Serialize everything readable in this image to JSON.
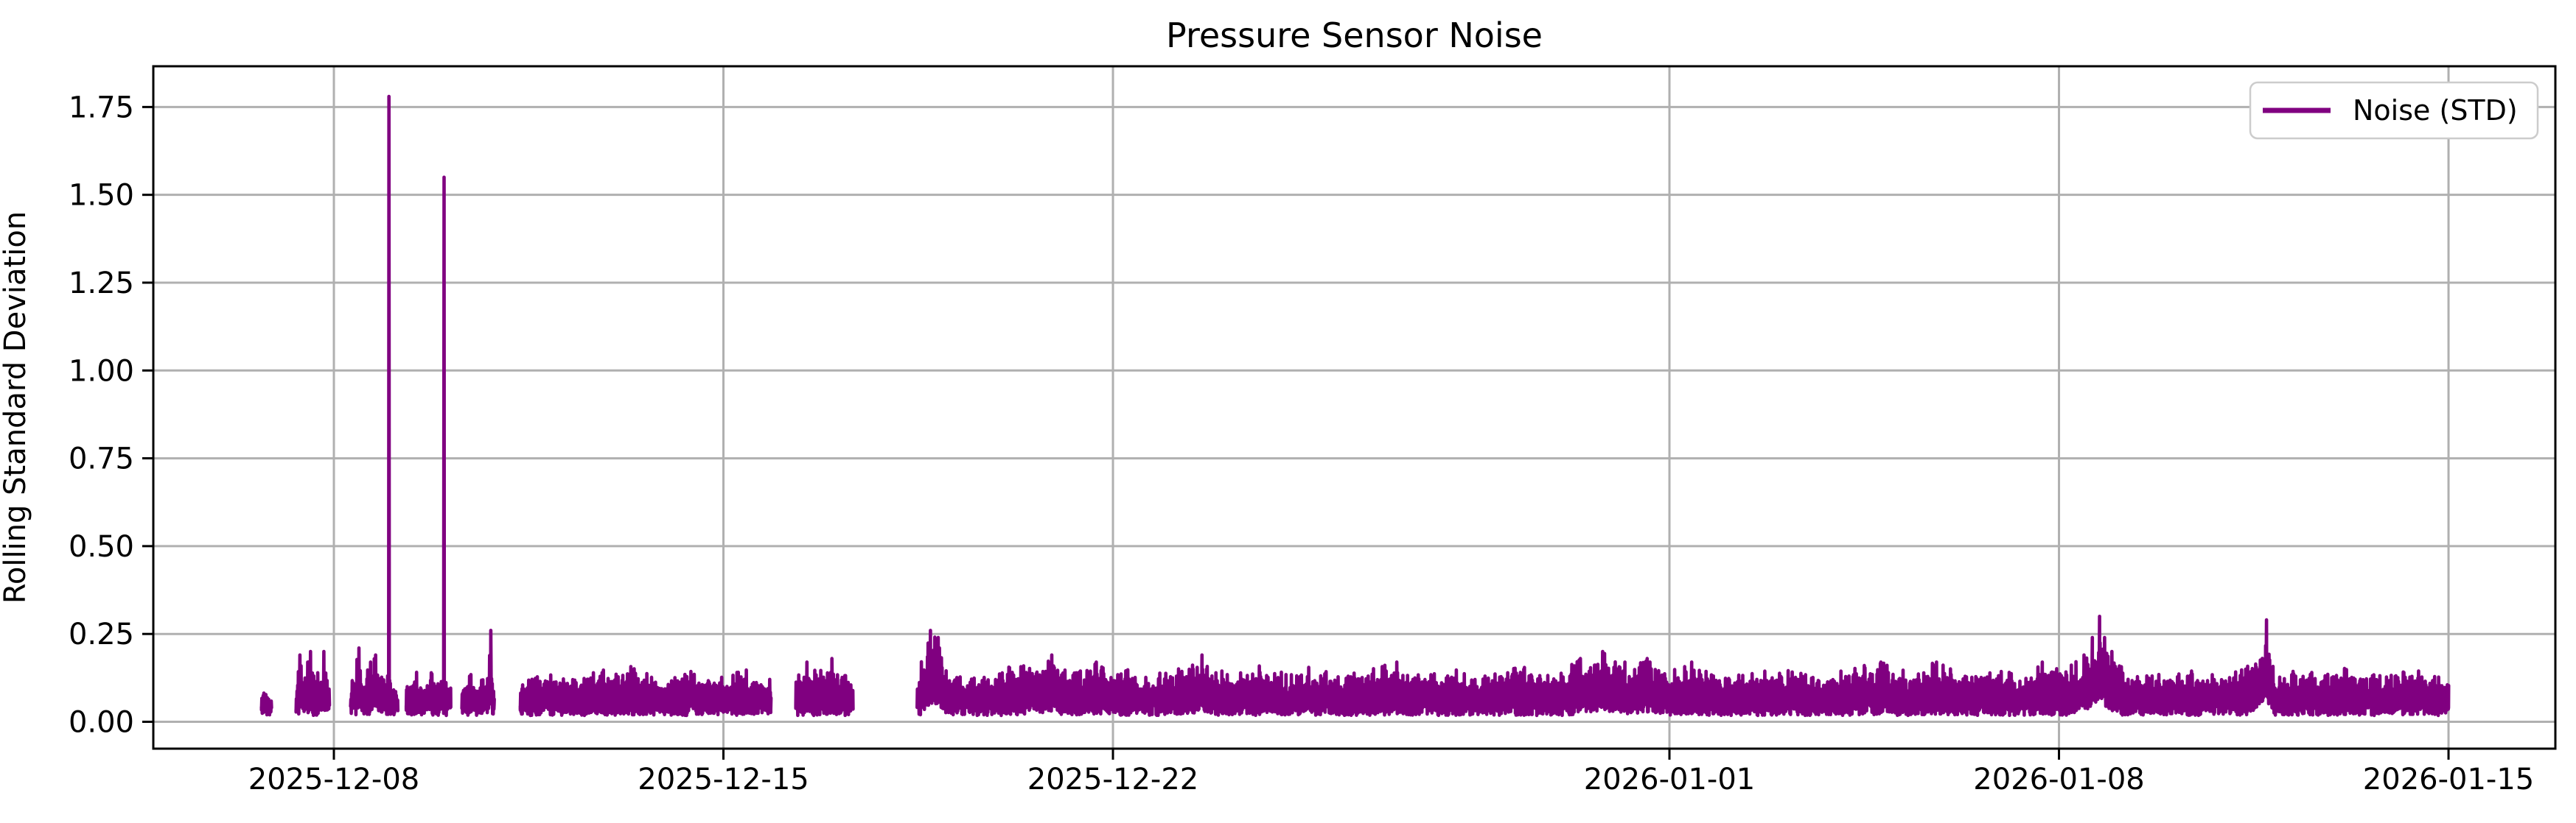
{
  "figure": {
    "background": "#ffffff"
  },
  "chart_data": {
    "type": "line",
    "title": "Pressure Sensor Noise",
    "xlabel": "",
    "ylabel": "Rolling Standard Deviation",
    "grid": "on",
    "legend": [
      {
        "label": "Noise (STD)",
        "color": "#800080"
      }
    ],
    "legend_position": "upper right",
    "colors": {
      "line": "#800080",
      "grid": "#b0b0b0",
      "spine": "#000000",
      "legend_border": "#cccccc"
    },
    "x_axis": {
      "tick_unit": "date",
      "ticks": [
        {
          "label": "2025-12-08",
          "day": 0
        },
        {
          "label": "2025-12-15",
          "day": 7
        },
        {
          "label": "2025-12-22",
          "day": 14
        },
        {
          "label": "2026-01-01",
          "day": 24
        },
        {
          "label": "2026-01-08",
          "day": 31
        },
        {
          "label": "2026-01-15",
          "day": 38
        }
      ],
      "domain_days": [
        -3.245,
        39.92
      ]
    },
    "y_axis": {
      "ticks": [
        {
          "label": "0.00",
          "value": 0.0
        },
        {
          "label": "0.25",
          "value": 0.25
        },
        {
          "label": "0.50",
          "value": 0.5
        },
        {
          "label": "0.75",
          "value": 0.75
        },
        {
          "label": "1.00",
          "value": 1.0
        },
        {
          "label": "1.25",
          "value": 1.25
        },
        {
          "label": "1.50",
          "value": 1.5
        },
        {
          "label": "1.75",
          "value": 1.75
        }
      ],
      "domain": [
        -0.0765,
        1.866
      ]
    },
    "series": {
      "name": "Noise (STD)",
      "color": "#800080",
      "baseline_range": [
        0.02,
        0.12
      ],
      "big_spikes": [
        {
          "day": 0.99,
          "value": 1.78,
          "date": "2025-12-09"
        },
        {
          "day": 1.98,
          "value": 1.55,
          "date": "2025-12-10"
        }
      ],
      "segments": [
        {
          "t_range": [
            -1.3,
            -1.12
          ],
          "envelope": [
            [
              -1.3,
              0.07
            ],
            [
              -1.24,
              0.1
            ],
            [
              -1.18,
              0.08
            ],
            [
              -1.12,
              0.06
            ]
          ]
        },
        {
          "t_range": [
            -0.68,
            -0.08
          ],
          "envelope": [
            [
              -0.68,
              0.1
            ],
            [
              -0.61,
              0.19
            ],
            [
              -0.55,
              0.13
            ],
            [
              -0.47,
              0.17
            ],
            [
              -0.42,
              0.2
            ],
            [
              -0.33,
              0.13
            ],
            [
              -0.27,
              0.16
            ],
            [
              -0.18,
              0.2
            ],
            [
              -0.12,
              0.13
            ],
            [
              -0.08,
              0.09
            ]
          ]
        },
        {
          "t_range": [
            0.3,
            1.15
          ],
          "envelope": [
            [
              0.3,
              0.1
            ],
            [
              0.38,
              0.15
            ],
            [
              0.45,
              0.21
            ],
            [
              0.55,
              0.13
            ],
            [
              0.66,
              0.17
            ],
            [
              0.75,
              0.19
            ],
            [
              0.85,
              0.13
            ],
            [
              0.95,
              0.16
            ],
            [
              1.05,
              0.12
            ],
            [
              1.15,
              0.09
            ]
          ]
        },
        {
          "t_range": [
            1.3,
            2.1
          ],
          "envelope": [
            [
              1.3,
              0.1
            ],
            [
              1.45,
              0.15
            ],
            [
              1.6,
              0.12
            ],
            [
              1.75,
              0.14
            ],
            [
              1.9,
              0.12
            ],
            [
              2.05,
              0.13
            ]
          ]
        },
        {
          "t_range": [
            2.3,
            2.88
          ],
          "envelope": [
            [
              2.3,
              0.11
            ],
            [
              2.45,
              0.14
            ],
            [
              2.6,
              0.12
            ],
            [
              2.75,
              0.13
            ],
            [
              2.82,
              0.26
            ],
            [
              2.88,
              0.09
            ]
          ]
        },
        {
          "t_range": [
            3.35,
            7.85
          ],
          "envelope": [
            [
              3.35,
              0.11
            ],
            [
              3.8,
              0.14
            ],
            [
              4.3,
              0.12
            ],
            [
              4.8,
              0.15
            ],
            [
              5.4,
              0.16
            ],
            [
              5.9,
              0.12
            ],
            [
              6.4,
              0.15
            ],
            [
              6.9,
              0.13
            ],
            [
              7.4,
              0.15
            ],
            [
              7.85,
              0.12
            ]
          ]
        },
        {
          "t_range": [
            8.3,
            9.33
          ],
          "envelope": [
            [
              8.3,
              0.12
            ],
            [
              8.5,
              0.17
            ],
            [
              8.7,
              0.14
            ],
            [
              8.95,
              0.18
            ],
            [
              9.15,
              0.14
            ],
            [
              9.33,
              0.11
            ]
          ]
        },
        {
          "t_range": [
            10.48,
            38.0
          ],
          "envelope": [
            [
              10.48,
              0.13
            ],
            [
              10.72,
              0.26
            ],
            [
              10.86,
              0.24
            ],
            [
              11.05,
              0.15
            ],
            [
              11.6,
              0.13
            ],
            [
              12.2,
              0.16
            ],
            [
              12.9,
              0.19
            ],
            [
              13.3,
              0.14
            ],
            [
              13.7,
              0.17
            ],
            [
              14.1,
              0.16
            ],
            [
              14.6,
              0.13
            ],
            [
              15.1,
              0.15
            ],
            [
              15.6,
              0.19
            ],
            [
              16.1,
              0.13
            ],
            [
              16.6,
              0.16
            ],
            [
              17.1,
              0.14
            ],
            [
              17.6,
              0.16
            ],
            [
              18.1,
              0.13
            ],
            [
              18.6,
              0.15
            ],
            [
              19.1,
              0.17
            ],
            [
              19.6,
              0.13
            ],
            [
              20.1,
              0.15
            ],
            [
              20.7,
              0.13
            ],
            [
              21.3,
              0.16
            ],
            [
              21.9,
              0.13
            ],
            [
              22.4,
              0.18
            ],
            [
              22.8,
              0.2
            ],
            [
              23.2,
              0.17
            ],
            [
              23.6,
              0.18
            ],
            [
              24.0,
              0.15
            ],
            [
              24.4,
              0.17
            ],
            [
              24.9,
              0.13
            ],
            [
              25.4,
              0.14
            ],
            [
              26.0,
              0.15
            ],
            [
              26.6,
              0.13
            ],
            [
              27.2,
              0.15
            ],
            [
              27.8,
              0.17
            ],
            [
              28.3,
              0.15
            ],
            [
              28.8,
              0.17
            ],
            [
              29.3,
              0.15
            ],
            [
              29.8,
              0.16
            ],
            [
              30.3,
              0.13
            ],
            [
              30.7,
              0.17
            ],
            [
              31.1,
              0.15
            ],
            [
              31.45,
              0.19
            ],
            [
              31.6,
              0.24
            ],
            [
              31.73,
              0.3
            ],
            [
              31.82,
              0.24
            ],
            [
              31.95,
              0.2
            ],
            [
              32.15,
              0.16
            ],
            [
              32.5,
              0.13
            ],
            [
              33.0,
              0.14
            ],
            [
              33.5,
              0.15
            ],
            [
              34.0,
              0.13
            ],
            [
              34.4,
              0.16
            ],
            [
              34.73,
              0.29
            ],
            [
              34.9,
              0.13
            ],
            [
              35.3,
              0.15
            ],
            [
              35.8,
              0.14
            ],
            [
              36.3,
              0.16
            ],
            [
              36.8,
              0.13
            ],
            [
              37.3,
              0.15
            ],
            [
              37.7,
              0.14
            ],
            [
              38.0,
              0.11
            ]
          ]
        }
      ]
    }
  }
}
